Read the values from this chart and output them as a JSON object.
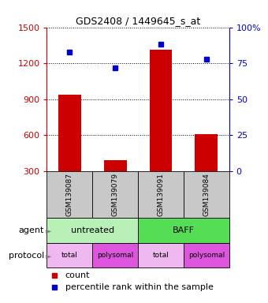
{
  "title": "GDS2408 / 1449645_s_at",
  "samples": [
    "GSM139087",
    "GSM139079",
    "GSM139091",
    "GSM139084"
  ],
  "bar_values": [
    935,
    390,
    1310,
    610
  ],
  "percentile_values": [
    83,
    72,
    88,
    78
  ],
  "bar_color": "#cc0000",
  "percentile_color": "#0000cc",
  "left_ylim": [
    300,
    1500
  ],
  "left_yticks": [
    300,
    600,
    900,
    1200,
    1500
  ],
  "right_ylim": [
    0,
    100
  ],
  "right_yticks": [
    0,
    25,
    50,
    75,
    100
  ],
  "right_yticklabels": [
    "0",
    "25",
    "50",
    "75",
    "100%"
  ],
  "agent_labels": [
    "untreated",
    "BAFF"
  ],
  "agent_color_untreated": "#b8f0b8",
  "agent_color_baff": "#55dd55",
  "protocol_color_total": "#f0b8f0",
  "protocol_color_polysomal": "#dd55dd",
  "sample_box_color": "#c8c8c8",
  "left_tick_color": "#cc0000",
  "right_tick_color": "#0000cc",
  "bar_width": 0.5
}
